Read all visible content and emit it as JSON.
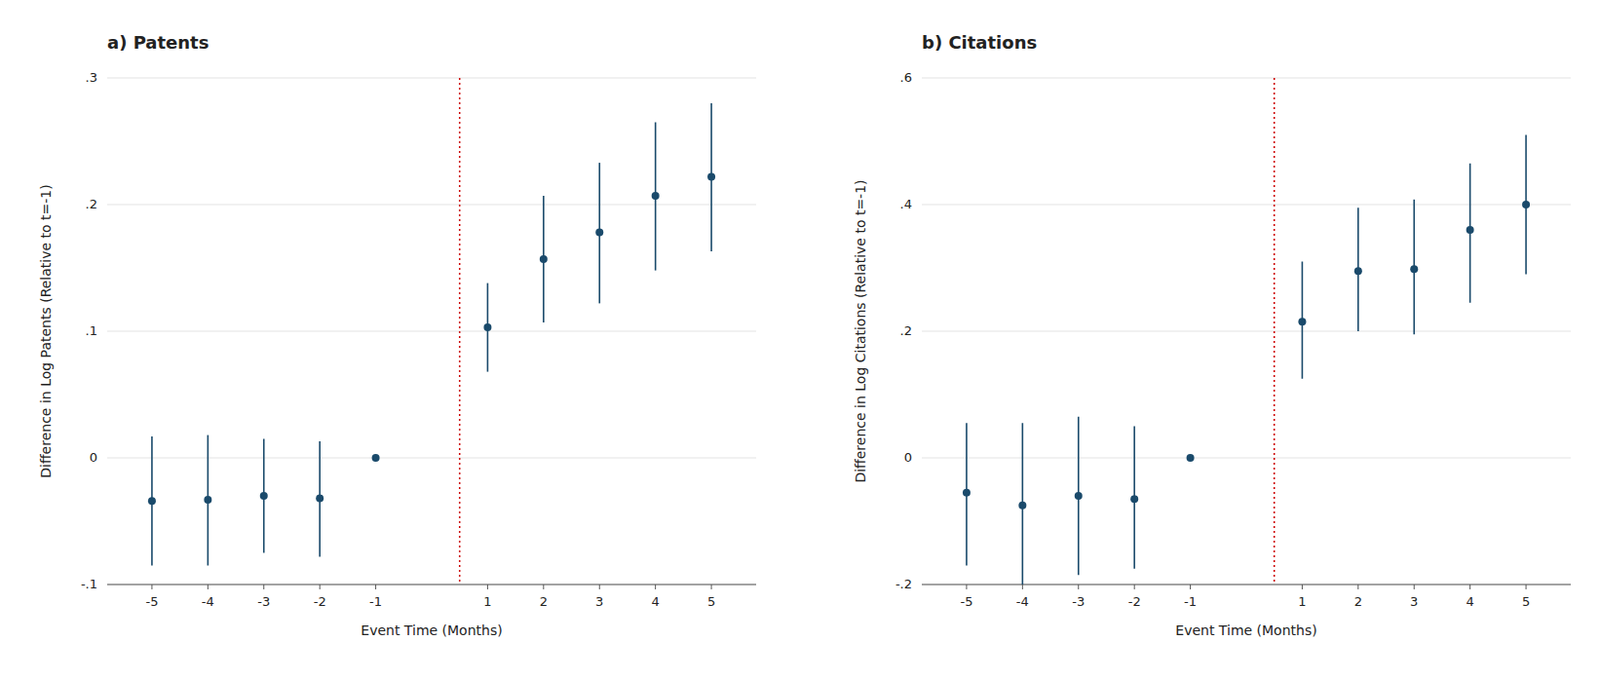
{
  "chart_data": [
    {
      "type": "scatter",
      "title": "a) Patents",
      "x_label": "Event Time (Months)",
      "y_label": "Difference in Log Patents (Relative to t=-1)",
      "x": [
        -5,
        -4,
        -3,
        -2,
        -1,
        1,
        2,
        3,
        4,
        5
      ],
      "values": [
        -0.034,
        -0.033,
        -0.03,
        -0.032,
        0.0,
        0.103,
        0.157,
        0.178,
        0.207,
        0.222
      ],
      "ci_low": [
        -0.085,
        -0.085,
        -0.075,
        -0.078,
        0.0,
        0.068,
        0.107,
        0.122,
        0.148,
        0.163
      ],
      "ci_high": [
        0.017,
        0.018,
        0.015,
        0.013,
        0.0,
        0.138,
        0.207,
        0.233,
        0.265,
        0.28
      ],
      "color": "#1a4a6b",
      "reference_line": {
        "x": 0.5,
        "color": "#cc0000"
      },
      "xlim": [
        -5.8,
        5.8
      ],
      "xticks": [
        -5,
        -4,
        -3,
        -2,
        -1,
        1,
        2,
        3,
        4,
        5
      ],
      "ylim": [
        -0.1,
        0.3
      ],
      "yticks": [
        {
          "value": -0.1,
          "label": "-.1"
        },
        0,
        {
          "value": 0.1,
          "label": ".1"
        },
        {
          "value": 0.2,
          "label": ".2"
        },
        {
          "value": 0.3,
          "label": ".3"
        }
      ],
      "grid": true
    },
    {
      "type": "scatter",
      "title": "b) Citations",
      "x_label": "Event Time (Months)",
      "y_label": "Difference in Log Citations (Relative to t=-1)",
      "x": [
        -5,
        -4,
        -3,
        -2,
        -1,
        1,
        2,
        3,
        4,
        5
      ],
      "values": [
        -0.055,
        -0.075,
        -0.06,
        -0.065,
        0.0,
        0.215,
        0.295,
        0.298,
        0.36,
        0.4
      ],
      "ci_low": [
        -0.17,
        -0.2,
        -0.185,
        -0.175,
        0.0,
        0.125,
        0.2,
        0.195,
        0.245,
        0.29
      ],
      "ci_high": [
        0.055,
        0.055,
        0.065,
        0.05,
        0.0,
        0.31,
        0.395,
        0.408,
        0.465,
        0.51
      ],
      "color": "#1a4a6b",
      "reference_line": {
        "x": 0.5,
        "color": "#cc0000"
      },
      "xlim": [
        -5.8,
        5.8
      ],
      "xticks": [
        -5,
        -4,
        -3,
        -2,
        -1,
        1,
        2,
        3,
        4,
        5
      ],
      "ylim": [
        -0.2,
        0.6
      ],
      "yticks": [
        {
          "value": -0.2,
          "label": "-.2"
        },
        0,
        {
          "value": 0.2,
          "label": ".2"
        },
        {
          "value": 0.4,
          "label": ".4"
        },
        {
          "value": 0.6,
          "label": ".6"
        }
      ],
      "grid": true
    }
  ]
}
